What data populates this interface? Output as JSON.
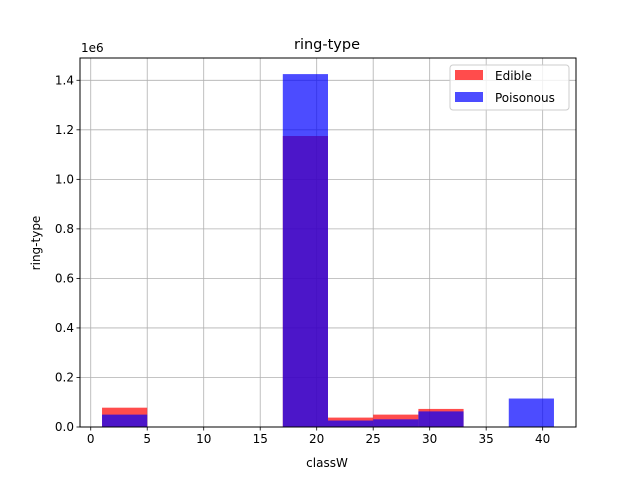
{
  "chart_data": {
    "type": "bar",
    "title": "ring-type",
    "xlabel": "classW",
    "ylabel": "ring-type",
    "y_offset_label": "1e6",
    "xlim": [
      -0.95,
      42.95
    ],
    "ylim": [
      0,
      1.49
    ],
    "xticks": [
      0,
      5,
      10,
      15,
      20,
      25,
      30,
      35,
      40
    ],
    "yticks": [
      0.0,
      0.2,
      0.4,
      0.6,
      0.8,
      1.0,
      1.2,
      1.4
    ],
    "grid": true,
    "legend_position": "top-right",
    "series": [
      {
        "name": "Edible",
        "color": "#ff0000",
        "opacity": 0.7,
        "bins": [
          {
            "x0": 1,
            "x1": 5,
            "value": 0.078
          },
          {
            "x0": 17,
            "x1": 21,
            "value": 1.175
          },
          {
            "x0": 21,
            "x1": 25,
            "value": 0.038
          },
          {
            "x0": 25,
            "x1": 29,
            "value": 0.05
          },
          {
            "x0": 29,
            "x1": 33,
            "value": 0.073
          }
        ]
      },
      {
        "name": "Poisonous",
        "color": "#0000ff",
        "opacity": 0.7,
        "bins": [
          {
            "x0": 1,
            "x1": 5,
            "value": 0.05
          },
          {
            "x0": 17,
            "x1": 21,
            "value": 1.425
          },
          {
            "x0": 21,
            "x1": 25,
            "value": 0.026
          },
          {
            "x0": 25,
            "x1": 29,
            "value": 0.031
          },
          {
            "x0": 29,
            "x1": 33,
            "value": 0.063
          },
          {
            "x0": 37,
            "x1": 41,
            "value": 0.115
          }
        ]
      }
    ]
  }
}
